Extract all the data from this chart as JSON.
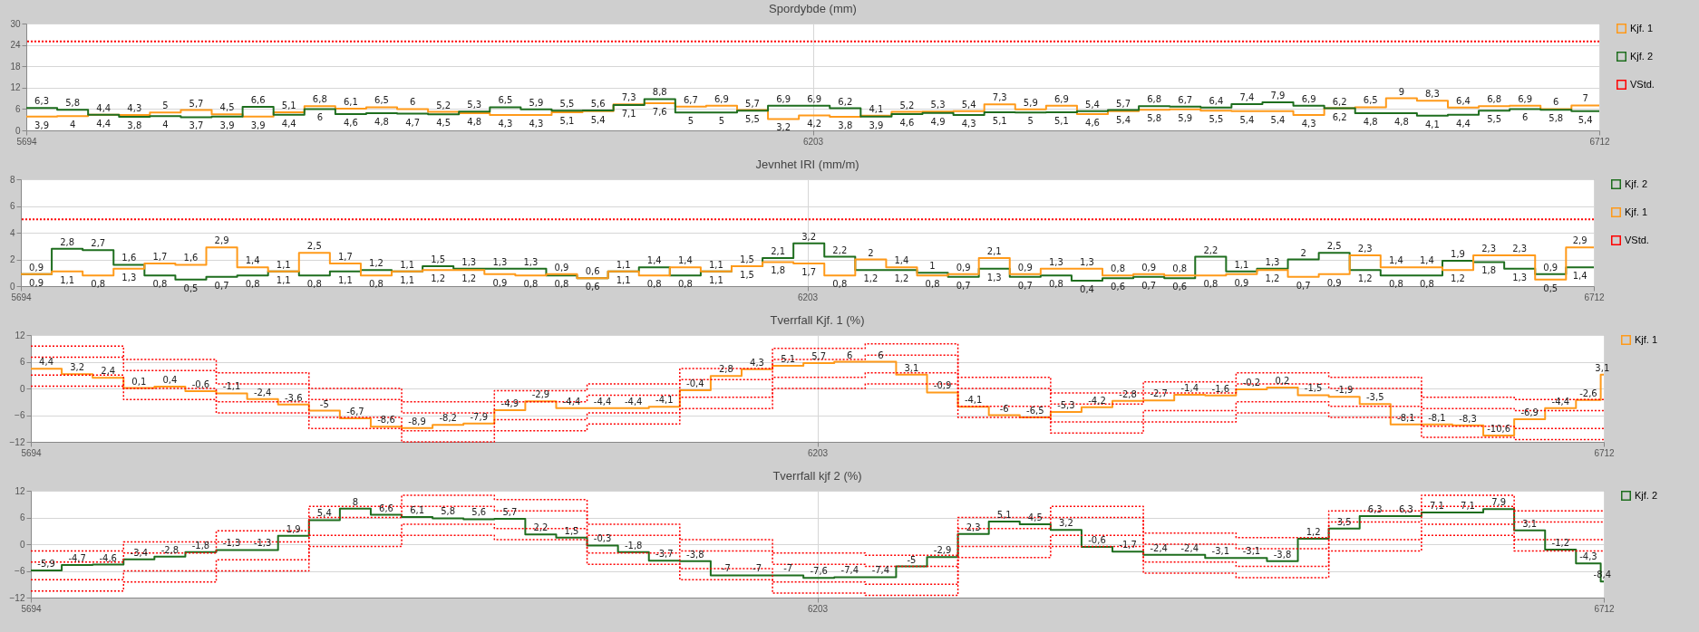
{
  "chart_data": [
    {
      "type": "step",
      "title": "Spordybde (mm)",
      "legend": "right",
      "grid": true,
      "x": [
        5694,
        5714,
        5734,
        5754,
        5774,
        5794,
        5814,
        5834,
        5854,
        5874,
        5894,
        5914,
        5934,
        5954,
        5974,
        5994,
        6014,
        6034,
        6054,
        6074,
        6094,
        6114,
        6134,
        6154,
        6174,
        6194,
        6214,
        6234,
        6254,
        6274,
        6294,
        6314,
        6334,
        6354,
        6374,
        6394,
        6414,
        6434,
        6454,
        6474,
        6494,
        6514,
        6534,
        6554,
        6574,
        6594,
        6614,
        6634,
        6654,
        6674,
        6694,
        6712
      ],
      "xlim": [
        5694,
        6712
      ],
      "xticks": [
        5694,
        6203,
        6712
      ],
      "ylim": [
        0,
        30
      ],
      "yticks": [
        0,
        6,
        12,
        18,
        24,
        30
      ],
      "series": [
        {
          "name": "Kjf. 1",
          "color": "#ff9a1a",
          "values": [
            3.9,
            4,
            4.4,
            4.3,
            5,
            5.7,
            4.5,
            3.9,
            5.1,
            6.8,
            6.1,
            6.5,
            6,
            5.2,
            4.8,
            4.3,
            4.3,
            5.1,
            5.4,
            7.3,
            7.6,
            6.7,
            6.9,
            5.7,
            3.2,
            4.2,
            3.8,
            4.1,
            5.2,
            5.3,
            5.4,
            7.3,
            5.9,
            6.9,
            4.6,
            5.4,
            5.8,
            5.9,
            5.5,
            5.4,
            5.4,
            4.3,
            6.2,
            6.5,
            9,
            8.3,
            6.4,
            6.8,
            6.9,
            6,
            7,
            7
          ],
          "value_labels": [
            "3,9",
            "4",
            "4,4",
            "4,3",
            "5",
            "5,7",
            "4,5",
            "3,9",
            "5,1",
            "6,8",
            "6,1",
            "6,5",
            "6",
            "5,2",
            "4,8",
            "4,3",
            "4,3",
            "5,1",
            "5,4",
            "7,3",
            "7,6",
            "6,7",
            "6,9",
            "5,7",
            "3,2",
            "4,2",
            "3,8",
            "4,1",
            "5,2",
            "5,3",
            "5,4",
            "7,3",
            "5,9",
            "6,9",
            "4,6",
            "5,4",
            "5,8",
            "5,9",
            "5,5",
            "5,4",
            "5,4",
            "4,3",
            "6,2",
            "6,5",
            "9",
            "8,3",
            "6,4",
            "6,8",
            "6,9",
            "6",
            "7",
            null
          ]
        },
        {
          "name": "Kjf. 2",
          "color": "#1e6e1e",
          "values": [
            6.3,
            5.8,
            4.4,
            3.8,
            4,
            3.7,
            3.9,
            6.6,
            4.4,
            6,
            4.6,
            4.8,
            4.7,
            4.5,
            5.3,
            6.5,
            5.9,
            5.5,
            5.6,
            7.1,
            8.8,
            5,
            5,
            5.5,
            6.9,
            6.9,
            6.2,
            3.9,
            4.6,
            4.9,
            4.3,
            5.1,
            5,
            5.1,
            5.4,
            5.7,
            6.8,
            6.7,
            6.4,
            7.4,
            7.9,
            6.9,
            6.2,
            4.8,
            4.8,
            4.1,
            4.4,
            5.5,
            6,
            5.8,
            5.4,
            5.4
          ],
          "value_labels": [
            "6,3",
            "5,8",
            "4,4",
            "3,8",
            "4",
            "3,7",
            "3,9",
            "6,6",
            "4,4",
            "6",
            "4,6",
            "4,8",
            "4,7",
            "4,5",
            "5,3",
            "6,5",
            "5,9",
            "5,5",
            "5,6",
            "7,1",
            "8,8",
            "5",
            "5",
            "5,5",
            "6,9",
            "6,9",
            "6,2",
            "3,9",
            "4,6",
            "4,9",
            "4,3",
            "5,1",
            "5",
            "5,1",
            "5,4",
            "5,7",
            "6,8",
            "6,7",
            "6,4",
            "7,4",
            "7,9",
            "6,9",
            "6,2",
            "4,8",
            "4,8",
            "4,1",
            "4,4",
            "5,5",
            "6",
            "5,8",
            "5,4",
            null
          ]
        }
      ],
      "ref_lines": [
        {
          "axis": "y",
          "value": 25,
          "label": "VStd.",
          "color": "#ff0000",
          "line_style": "dotted"
        }
      ]
    },
    {
      "type": "step",
      "title": "Jevnhet IRI (mm/m)",
      "legend": "right",
      "grid": true,
      "x": [
        5694,
        5714,
        5734,
        5754,
        5774,
        5794,
        5814,
        5834,
        5854,
        5874,
        5894,
        5914,
        5934,
        5954,
        5974,
        5994,
        6014,
        6034,
        6054,
        6074,
        6094,
        6114,
        6134,
        6154,
        6174,
        6194,
        6214,
        6234,
        6254,
        6274,
        6294,
        6314,
        6334,
        6354,
        6374,
        6394,
        6414,
        6434,
        6454,
        6474,
        6494,
        6514,
        6534,
        6554,
        6574,
        6594,
        6614,
        6634,
        6654,
        6674,
        6694,
        6712
      ],
      "xlim": [
        5694,
        6712
      ],
      "xticks": [
        5694,
        6203,
        6712
      ],
      "ylim": [
        0,
        8
      ],
      "yticks": [
        0,
        2,
        4,
        6,
        8
      ],
      "series": [
        {
          "name": "Kjf. 2",
          "color": "#1e6e1e",
          "values": [
            0.9,
            2.8,
            2.7,
            1.6,
            0.8,
            0.5,
            0.7,
            0.8,
            1.1,
            0.8,
            1.1,
            1.2,
            1.1,
            1.5,
            1.3,
            1.3,
            1.3,
            0.8,
            0.6,
            1.1,
            1.4,
            0.8,
            1.1,
            1.5,
            2.1,
            3.2,
            2.2,
            1.2,
            1.2,
            1,
            0.7,
            1.3,
            0.7,
            0.8,
            0.4,
            0.6,
            0.7,
            0.6,
            2.2,
            1.1,
            1.3,
            2,
            2.5,
            1.2,
            0.8,
            0.8,
            1.9,
            1.8,
            1.3,
            0.9,
            1.4,
            1.4
          ],
          "value_labels": [
            "0,9",
            "2,8",
            "2,7",
            "1,6",
            "0,8",
            "0,5",
            "0,7",
            "0,8",
            "1,1",
            "0,8",
            "1,1",
            "1,2",
            "1,1",
            "1,5",
            "1,3",
            "1,3",
            "1,3",
            "0,8",
            "0,6",
            "1,1",
            "1,4",
            "0,8",
            "1,1",
            "1,5",
            "2,1",
            "3,2",
            "2,2",
            "1,2",
            "1,2",
            "1",
            "0,7",
            "1,3",
            "0,7",
            "0,8",
            "0,4",
            "0,6",
            "0,7",
            "0,6",
            "2,2",
            "1,1",
            "1,3",
            "2",
            "2,5",
            "1,2",
            "0,8",
            "0,8",
            "1,9",
            "1,8",
            "1,3",
            "0,9",
            "1,4",
            null
          ]
        },
        {
          "name": "Kjf. 1",
          "color": "#ff9a1a",
          "values": [
            0.9,
            1.1,
            0.8,
            1.3,
            1.7,
            1.6,
            2.9,
            1.4,
            1.1,
            2.5,
            1.7,
            0.8,
            1.1,
            1.2,
            1.2,
            0.9,
            0.8,
            0.9,
            0.6,
            1.1,
            0.8,
            1.4,
            1.1,
            1.5,
            1.8,
            1.7,
            0.8,
            2,
            1.4,
            0.8,
            0.9,
            2.1,
            0.9,
            1.3,
            1.3,
            0.8,
            0.9,
            0.8,
            0.8,
            0.9,
            1.2,
            0.7,
            0.9,
            2.3,
            1.4,
            1.4,
            1.2,
            2.3,
            2.3,
            0.5,
            2.9,
            2.9
          ],
          "value_labels": [
            "0,9",
            "1,1",
            "0,8",
            "1,3",
            "1,7",
            "1,6",
            "2,9",
            "1,4",
            "1,1",
            "2,5",
            "1,7",
            "0,8",
            "1,1",
            "1,2",
            "1,2",
            "0,9",
            "0,8",
            "0,9",
            "0,6",
            "1,1",
            "0,8",
            "1,4",
            "1,1",
            "1,5",
            "1,8",
            "1,7",
            "0,8",
            "2",
            "1,4",
            "0,8",
            "0,9",
            "2,1",
            "0,9",
            "1,3",
            "1,3",
            "0,8",
            "0,9",
            "0,8",
            "0,8",
            "0,9",
            "1,2",
            "0,7",
            "0,9",
            "2,3",
            "1,4",
            "1,4",
            "1,2",
            "2,3",
            "2,3",
            "0,5",
            "2,9",
            null
          ]
        }
      ],
      "ref_lines": [
        {
          "axis": "y",
          "value": 5,
          "label": "VStd.",
          "color": "#ff0000",
          "line_style": "dotted"
        }
      ]
    },
    {
      "type": "step",
      "title": "Tverrfall Kjf. 1 (%)",
      "legend": "right",
      "grid": true,
      "xlim": [
        5694,
        6712
      ],
      "xticks": [
        5694,
        6203,
        6712
      ],
      "ylim": [
        -12,
        12
      ],
      "yticks": [
        -12,
        -6,
        0,
        6,
        12
      ],
      "series": [
        {
          "name": "Kjf. 1",
          "color": "#ff9a1a",
          "x": [
            5694,
            5714,
            5734,
            5754,
            5774,
            5794,
            5814,
            5834,
            5854,
            5874,
            5894,
            5914,
            5934,
            5954,
            5974,
            5994,
            6014,
            6034,
            6054,
            6074,
            6094,
            6114,
            6134,
            6154,
            6174,
            6194,
            6214,
            6234,
            6254,
            6274,
            6294,
            6314,
            6334,
            6354,
            6374,
            6394,
            6414,
            6434,
            6454,
            6474,
            6494,
            6514,
            6534,
            6554,
            6574,
            6594,
            6614,
            6634,
            6654,
            6674,
            6694,
            6710,
            6712
          ],
          "values": [
            4.4,
            3.2,
            2.4,
            0.1,
            0.4,
            -0.6,
            -1.1,
            -2.4,
            -3.6,
            -5,
            -6.7,
            -8.6,
            -8.9,
            -8.2,
            -7.9,
            -4.9,
            -2.9,
            -4.4,
            -4.4,
            -4.4,
            -4.1,
            -0.4,
            2.8,
            4.3,
            5.1,
            5.7,
            6,
            6,
            3.1,
            -0.9,
            -4.1,
            -6,
            -6.5,
            -5.3,
            -4.2,
            -2.8,
            -2.7,
            -1.4,
            -1.6,
            -0.2,
            0.2,
            -1.5,
            -1.9,
            -3.5,
            -8.1,
            -8.1,
            -8.3,
            -10.6,
            -6.9,
            -4.4,
            -2.6,
            3.1,
            3.1
          ],
          "value_labels": [
            "4,4",
            "3,2",
            "2,4",
            "0,1",
            "0,4",
            "-0,6",
            "-1,1",
            "-2,4",
            "-3,6",
            "-5",
            "-6,7",
            "-8,6",
            "-8,9",
            "-8,2",
            "-7,9",
            "-4,9",
            "-2,9",
            "-4,4",
            "-4,4",
            "-4,4",
            "-4,1",
            "-0,4",
            "2,8",
            "4,3",
            "5,1",
            "5,7",
            "6",
            "6",
            "3,1",
            "-0,9",
            "-4,1",
            "-6",
            "-6,5",
            "-5,3",
            "-4,2",
            "-2,8",
            "-2,7",
            "-1,4",
            "-1,6",
            "-0,2",
            "0,2",
            "-1,5",
            "-1,9",
            "-3,5",
            "-8,1",
            "-8,1",
            "-8,3",
            "-10,6",
            "-6,9",
            "-4,4",
            "-2,6",
            "3,1",
            null
          ]
        },
        {
          "color": "#ff0000",
          "line_style": "dotted",
          "x": [
            5694,
            5754,
            5814,
            5874,
            5934,
            5994,
            6054,
            6114,
            6174,
            6234,
            6294,
            6354,
            6414,
            6474,
            6534,
            6594,
            6654,
            6712
          ],
          "values": [
            9.5,
            6.5,
            3.5,
            0,
            -3,
            -0.5,
            1,
            4.5,
            9,
            10,
            2.5,
            -1,
            1.5,
            3.5,
            2.5,
            -2,
            -2.5,
            -2.5
          ]
        },
        {
          "color": "#ff0000",
          "line_style": "dotted",
          "x": [
            5694,
            5754,
            5814,
            5874,
            5934,
            5994,
            6054,
            6114,
            6174,
            6234,
            6294,
            6354,
            6414,
            6474,
            6534,
            6594,
            6654,
            6712
          ],
          "values": [
            7,
            4,
            1,
            -2.5,
            -5.5,
            -3,
            -1.5,
            2,
            6.5,
            7.5,
            0,
            -3.5,
            -1,
            1,
            0,
            -4.5,
            -5,
            -5
          ]
        },
        {
          "color": "#ff0000",
          "line_style": "dotted",
          "x": [
            5694,
            5754,
            5814,
            5874,
            5934,
            5994,
            6054,
            6114,
            6174,
            6234,
            6294,
            6354,
            6414,
            6474,
            6534,
            6594,
            6654,
            6712
          ],
          "values": [
            3,
            0,
            -3,
            -6.5,
            -9.5,
            -7,
            -5.5,
            -2,
            2.5,
            3.5,
            -4,
            -7.5,
            -5,
            -3,
            -4,
            -8.5,
            -9,
            -9
          ]
        },
        {
          "color": "#ff0000",
          "line_style": "dotted",
          "x": [
            5694,
            5754,
            5814,
            5874,
            5934,
            5994,
            6054,
            6114,
            6174,
            6234,
            6294,
            6354,
            6414,
            6474,
            6534,
            6594,
            6654,
            6712
          ],
          "values": [
            0.5,
            -2.5,
            -5.5,
            -9,
            -12,
            -9.5,
            -8,
            -4.5,
            0,
            1,
            -6.5,
            -10,
            -7.5,
            -5.5,
            -6.5,
            -11,
            -11.5,
            -11.5
          ]
        }
      ]
    },
    {
      "type": "step",
      "title": "Tverrfall kjf 2 (%)",
      "legend": "right",
      "grid": true,
      "xlim": [
        5694,
        6712
      ],
      "xticks": [
        5694,
        6203,
        6712
      ],
      "ylim": [
        -12,
        12
      ],
      "yticks": [
        -12,
        -6,
        0,
        6,
        12
      ],
      "series": [
        {
          "name": "Kjf. 2",
          "color": "#1e6e1e",
          "x": [
            5694,
            5714,
            5734,
            5754,
            5774,
            5794,
            5814,
            5834,
            5854,
            5874,
            5894,
            5914,
            5934,
            5954,
            5974,
            5994,
            6014,
            6034,
            6054,
            6074,
            6094,
            6114,
            6134,
            6154,
            6174,
            6194,
            6214,
            6234,
            6254,
            6274,
            6294,
            6314,
            6334,
            6354,
            6374,
            6394,
            6414,
            6434,
            6454,
            6474,
            6494,
            6514,
            6534,
            6554,
            6574,
            6594,
            6614,
            6634,
            6654,
            6674,
            6694,
            6710,
            6712
          ],
          "values": [
            -5.9,
            -4.7,
            -4.6,
            -3.4,
            -2.8,
            -1.8,
            -1.3,
            -1.3,
            1.9,
            5.4,
            8,
            6.6,
            6.1,
            5.8,
            5.6,
            5.7,
            2.2,
            1.5,
            -0.3,
            -1.8,
            -3.7,
            -3.8,
            -7,
            -7,
            -7,
            -7.6,
            -7.4,
            -7.4,
            -5,
            -2.9,
            2.3,
            5.1,
            4.5,
            3.2,
            -0.6,
            -1.7,
            -2.4,
            -2.4,
            -3.1,
            -3.1,
            -3.8,
            1.2,
            3.5,
            6.3,
            6.3,
            7.1,
            7.1,
            7.9,
            3.1,
            -1.2,
            -4.3,
            -8.4,
            -8.4
          ],
          "value_labels": [
            "-5,9",
            "-4,7",
            "-4,6",
            "-3,4",
            "-2,8",
            "-1,8",
            "-1,3",
            "-1,3",
            "1,9",
            "5,4",
            "8",
            "6,6",
            "6,1",
            "5,8",
            "5,6",
            "5,7",
            "2,2",
            "1,5",
            "-0,3",
            "-1,8",
            "-3,7",
            "-3,8",
            "-7",
            "-7",
            "-7",
            "-7,6",
            "-7,4",
            "-7,4",
            "-5",
            "-2,9",
            "2,3",
            "5,1",
            "4,5",
            "3,2",
            "-0,6",
            "-1,7",
            "-2,4",
            "-2,4",
            "-3,1",
            "-3,1",
            "-3,8",
            "1,2",
            "3,5",
            "6,3",
            "6,3",
            "7,1",
            "7,1",
            "7,9",
            "3,1",
            "-1,2",
            "-4,3",
            "-8,4",
            null
          ]
        },
        {
          "color": "#ff0000",
          "line_style": "dotted",
          "x": [
            5694,
            5754,
            5814,
            5874,
            5934,
            5994,
            6054,
            6114,
            6174,
            6234,
            6294,
            6354,
            6414,
            6474,
            6534,
            6594,
            6654,
            6712
          ],
          "values": [
            -1.5,
            0.5,
            3,
            8.5,
            11,
            10,
            4.5,
            1,
            -2,
            -2.5,
            6,
            8.5,
            2.5,
            1.5,
            7.5,
            11,
            7.5,
            7.5
          ]
        },
        {
          "color": "#ff0000",
          "line_style": "dotted",
          "x": [
            5694,
            5754,
            5814,
            5874,
            5934,
            5994,
            6054,
            6114,
            6174,
            6234,
            6294,
            6354,
            6414,
            6474,
            6534,
            6594,
            6654,
            6712
          ],
          "values": [
            -4,
            -2,
            0.5,
            6,
            8.5,
            7.5,
            2,
            -1.5,
            -4.5,
            -5,
            3.5,
            6,
            0,
            -1,
            5,
            8.5,
            5,
            5
          ]
        },
        {
          "color": "#ff0000",
          "line_style": "dotted",
          "x": [
            5694,
            5754,
            5814,
            5874,
            5934,
            5994,
            6054,
            6114,
            6174,
            6234,
            6294,
            6354,
            6414,
            6474,
            6534,
            6594,
            6654,
            6712
          ],
          "values": [
            -8,
            -6,
            -3.5,
            2,
            4.5,
            3.5,
            -2,
            -5.5,
            -8.5,
            -9,
            -0.5,
            2,
            -4,
            -5,
            1,
            4.5,
            1,
            1
          ]
        },
        {
          "color": "#ff0000",
          "line_style": "dotted",
          "x": [
            5694,
            5754,
            5814,
            5874,
            5934,
            5994,
            6054,
            6114,
            6174,
            6234,
            6294,
            6354,
            6414,
            6474,
            6534,
            6594,
            6654,
            6712
          ],
          "values": [
            -10.5,
            -8.5,
            -6,
            -0.5,
            2,
            1,
            -4.5,
            -8,
            -11,
            -11.5,
            -3,
            -0.5,
            -6.5,
            -7.5,
            -1.5,
            2,
            -1.5,
            -1.5
          ]
        }
      ]
    }
  ]
}
